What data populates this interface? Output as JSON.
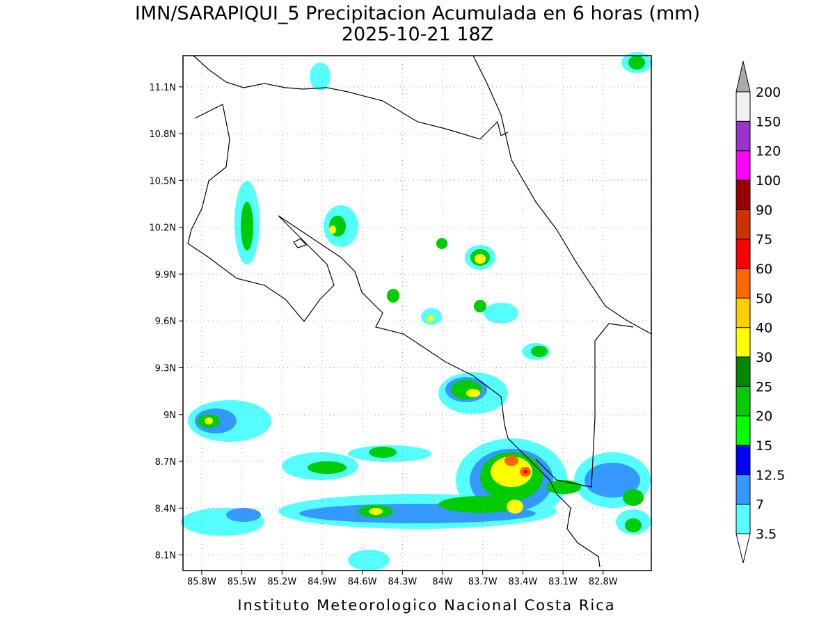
{
  "title": "IMN/SARAPIQUI_5 Precipitacion Acumulada en 6 horas (mm)",
  "subtitle": "2025-10-21 18Z",
  "footer": "Instituto Meteorologico Nacional Costa Rica",
  "map": {
    "lonlim": [
      -85.94,
      -82.44
    ],
    "latlim": [
      8.0,
      11.3
    ],
    "grid": true,
    "lon_ticks": [
      {
        "value": -85.8,
        "label": "85.8W"
      },
      {
        "value": -85.5,
        "label": "85.5W"
      },
      {
        "value": -85.2,
        "label": "85.2W"
      },
      {
        "value": -84.9,
        "label": "84.9W"
      },
      {
        "value": -84.6,
        "label": "84.6W"
      },
      {
        "value": -84.3,
        "label": "84.3W"
      },
      {
        "value": -84.0,
        "label": "84W"
      },
      {
        "value": -83.7,
        "label": "83.7W"
      },
      {
        "value": -83.4,
        "label": "83.4W"
      },
      {
        "value": -83.1,
        "label": "83.1W"
      },
      {
        "value": -82.8,
        "label": "82.8W"
      }
    ],
    "lat_ticks": [
      {
        "value": 8.1,
        "label": "8.1N"
      },
      {
        "value": 8.4,
        "label": "8.4N"
      },
      {
        "value": 8.7,
        "label": "8.7N"
      },
      {
        "value": 9.0,
        "label": "9N"
      },
      {
        "value": 9.3,
        "label": "9.3N"
      },
      {
        "value": 9.6,
        "label": "9.6N"
      },
      {
        "value": 9.9,
        "label": "9.9N"
      },
      {
        "value": 10.2,
        "label": "10.2N"
      },
      {
        "value": 10.5,
        "label": "10.5N"
      },
      {
        "value": 10.8,
        "label": "10.8N"
      },
      {
        "value": 11.1,
        "label": "11.1N"
      }
    ]
  },
  "colorbar": {
    "levels": [
      3.5,
      7,
      12.5,
      15,
      20,
      25,
      30,
      40,
      50,
      60,
      75,
      90,
      100,
      120,
      150,
      200
    ],
    "colors": [
      "#55ffff",
      "#3399ff",
      "#0000ff",
      "#00ff00",
      "#00cc00",
      "#008800",
      "#ffff00",
      "#ffcc00",
      "#ff6600",
      "#ff0000",
      "#cc3300",
      "#990000",
      "#ff00ff",
      "#9933cc",
      "#f0f0f0"
    ],
    "under_color": "#ffffff",
    "over_color": "#aaaaaa"
  }
}
